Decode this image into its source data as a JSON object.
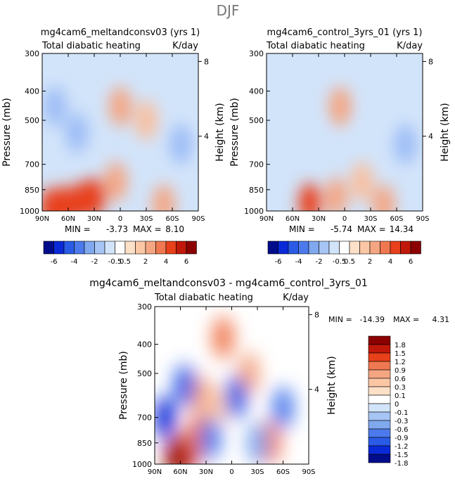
{
  "figure": {
    "season": "DJF",
    "colors": {
      "red_dark": "#8b0000",
      "red": "#e8401a",
      "salmon": "#f4a582",
      "peach": "#fde0c8",
      "white": "#ffffff",
      "blue_light": "#d2e4fa",
      "blue_mid": "#7fa8ee",
      "blue": "#2a5be6",
      "blue_dark": "#000c8a"
    }
  },
  "chart_data": [
    {
      "type": "heatmap",
      "id": "panel-a",
      "title": "mg4cam6_meltandconsv03 (yrs 1)",
      "variable": "Total diabatic heating",
      "units": "K/day",
      "ylabel": "Pressure (mb)",
      "ylabel_right": "Height (km)",
      "x_ticks": [
        "90N",
        "60N",
        "30N",
        "0",
        "30S",
        "60S",
        "90S"
      ],
      "x_values": [
        90,
        60,
        30,
        0,
        -30,
        -60,
        -90
      ],
      "xlim": [
        90,
        -90
      ],
      "y_ticks": [
        "300",
        "400",
        "500",
        "700",
        "850",
        "1000"
      ],
      "y_values": [
        300,
        400,
        500,
        700,
        850,
        1000
      ],
      "ylim": [
        1000,
        300
      ],
      "height_ticks": [
        "8",
        "4"
      ],
      "height_values": [
        8,
        4
      ],
      "min_label": "MIN =",
      "min": "-3.73",
      "max_label": "MAX =",
      "max": "8.10",
      "colorbar_labels": [
        "-6",
        "-4",
        "-2",
        "-0.5",
        "0.5",
        "2",
        "4",
        "6"
      ],
      "features": [
        {
          "lat": 80,
          "p": 975,
          "value": 3.5
        },
        {
          "lat": 65,
          "p": 960,
          "value": 3.0
        },
        {
          "lat": 45,
          "p": 930,
          "value": 2.8
        },
        {
          "lat": 30,
          "p": 900,
          "value": 2.5
        },
        {
          "lat": 5,
          "p": 800,
          "value": 1.5
        },
        {
          "lat": 0,
          "p": 450,
          "value": 2.0
        },
        {
          "lat": -30,
          "p": 500,
          "value": 1.0
        },
        {
          "lat": -50,
          "p": 950,
          "value": 1.5
        },
        {
          "lat": 50,
          "p": 550,
          "value": -1.3
        },
        {
          "lat": 75,
          "p": 450,
          "value": -1.2
        },
        {
          "lat": -70,
          "p": 600,
          "value": -1.0
        }
      ]
    },
    {
      "type": "heatmap",
      "id": "panel-b",
      "title": "mg4cam6_control_3yrs_01 (yrs 1)",
      "variable": "Total diabatic heating",
      "units": "K/day",
      "ylabel": "Pressure (mb)",
      "ylabel_right": "Height (km)",
      "x_ticks": [
        "90N",
        "60N",
        "30N",
        "0",
        "30S",
        "60S",
        "90S"
      ],
      "x_values": [
        90,
        60,
        30,
        0,
        -30,
        -60,
        -90
      ],
      "xlim": [
        90,
        -90
      ],
      "y_ticks": [
        "300",
        "400",
        "500",
        "700",
        "850",
        "1000"
      ],
      "y_values": [
        300,
        400,
        500,
        700,
        850,
        1000
      ],
      "ylim": [
        1000,
        300
      ],
      "height_ticks": [
        "8",
        "4"
      ],
      "height_values": [
        8,
        4
      ],
      "min_label": "MIN =",
      "min": "-5.74",
      "max_label": "MAX =",
      "max": "14.34",
      "colorbar_labels": [
        "-6",
        "-4",
        "-2",
        "-0.5",
        "0.5",
        "2",
        "4",
        "6"
      ],
      "features": [
        {
          "lat": 40,
          "p": 940,
          "value": 2.5
        },
        {
          "lat": 10,
          "p": 900,
          "value": 2.0
        },
        {
          "lat": 5,
          "p": 450,
          "value": 1.5
        },
        {
          "lat": -20,
          "p": 800,
          "value": 1.0
        },
        {
          "lat": -45,
          "p": 950,
          "value": 1.5
        },
        {
          "lat": 45,
          "p": 550,
          "value": -0.8
        },
        {
          "lat": 75,
          "p": 500,
          "value": -0.8
        },
        {
          "lat": -35,
          "p": 500,
          "value": -0.7
        },
        {
          "lat": -70,
          "p": 600,
          "value": -1.0
        }
      ]
    },
    {
      "type": "heatmap",
      "id": "panel-diff",
      "title": "mg4cam6_meltandconsv03 - mg4cam6_control_3yrs_01",
      "variable": "Total diabatic heating",
      "units": "K/day",
      "ylabel": "Pressure (mb)",
      "ylabel_right": "Height (km)",
      "x_ticks": [
        "90N",
        "60N",
        "30N",
        "0",
        "30S",
        "60S",
        "90S"
      ],
      "x_values": [
        90,
        60,
        30,
        0,
        -30,
        -60,
        -90
      ],
      "xlim": [
        90,
        -90
      ],
      "y_ticks": [
        "300",
        "400",
        "500",
        "700",
        "850",
        "1000"
      ],
      "y_values": [
        300,
        400,
        500,
        700,
        850,
        1000
      ],
      "ylim": [
        1000,
        300
      ],
      "height_ticks": [
        "8",
        "4"
      ],
      "height_values": [
        8,
        4
      ],
      "min_label": "MIN =",
      "min": "-14.39",
      "max_label": "MAX =",
      "max": "4.31",
      "colorbar_labels": [
        "1.8",
        "1.5",
        "1.2",
        "0.9",
        "0.6",
        "0.3",
        "0.1",
        "0",
        "-0.1",
        "-0.3",
        "-0.6",
        "-0.9",
        "-1.2",
        "-1.5",
        "-1.8"
      ],
      "features": [
        {
          "lat": 65,
          "p": 950,
          "value": 2.0
        },
        {
          "lat": 50,
          "p": 900,
          "value": 1.8
        },
        {
          "lat": 40,
          "p": 800,
          "value": 1.2
        },
        {
          "lat": 35,
          "p": 600,
          "value": 0.7
        },
        {
          "lat": 10,
          "p": 380,
          "value": 1.2
        },
        {
          "lat": -20,
          "p": 500,
          "value": 0.8
        },
        {
          "lat": -45,
          "p": 850,
          "value": 1.0
        },
        {
          "lat": 20,
          "p": 650,
          "value": 0.6
        },
        {
          "lat": 78,
          "p": 700,
          "value": -1.5
        },
        {
          "lat": 55,
          "p": 550,
          "value": -1.2
        },
        {
          "lat": 25,
          "p": 820,
          "value": -0.9
        },
        {
          "lat": -5,
          "p": 600,
          "value": -1.2
        },
        {
          "lat": -60,
          "p": 650,
          "value": -1.0
        },
        {
          "lat": -30,
          "p": 850,
          "value": -0.6
        }
      ]
    }
  ]
}
